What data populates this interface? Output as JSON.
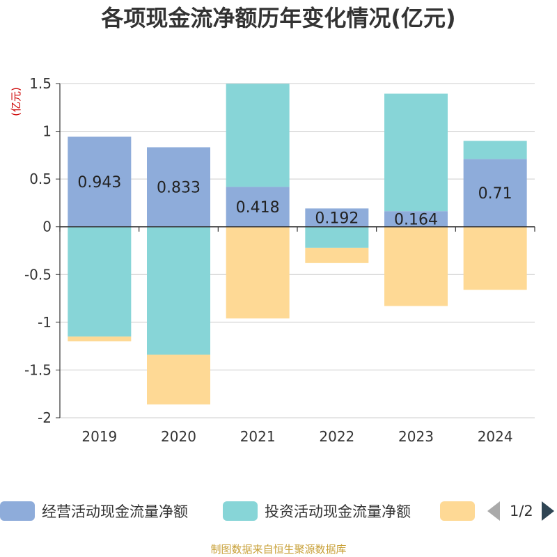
{
  "chart_data": {
    "type": "bar",
    "stacked": true,
    "title": "各项现金流净额历年变化情况(亿元)",
    "ylabel": "(亿元)",
    "categories": [
      "2019",
      "2020",
      "2021",
      "2022",
      "2023",
      "2024"
    ],
    "ylim": [
      -2,
      1.5
    ],
    "yticks": [
      1.5,
      1,
      0.5,
      0,
      -0.5,
      -1,
      -1.5,
      -2
    ],
    "ytick_labels": [
      "1.5",
      "1",
      "0.5",
      "0",
      "-0.5",
      "-1",
      "-1.5",
      "-2"
    ],
    "grid": true,
    "series": [
      {
        "name": "经营活动现金流量净额",
        "color": "#8eacda",
        "values": [
          0.943,
          0.833,
          0.418,
          0.192,
          0.164,
          0.71
        ],
        "labels": [
          "0.943",
          "0.833",
          "0.418",
          "0.192",
          "0.164",
          "0.71"
        ]
      },
      {
        "name": "投资活动现金流量净额",
        "color": "#87d5d7",
        "values": [
          -1.15,
          -1.34,
          1.08,
          -0.22,
          1.23,
          0.19
        ]
      },
      {
        "name": "",
        "color": "#fed995",
        "values": [
          -0.05,
          -0.52,
          -0.96,
          -0.16,
          -0.83,
          -0.66
        ]
      }
    ],
    "legend": {
      "position": "bottom",
      "page": "1/2"
    }
  },
  "footer": {
    "source": "制图数据来自恒生聚源数据库"
  }
}
